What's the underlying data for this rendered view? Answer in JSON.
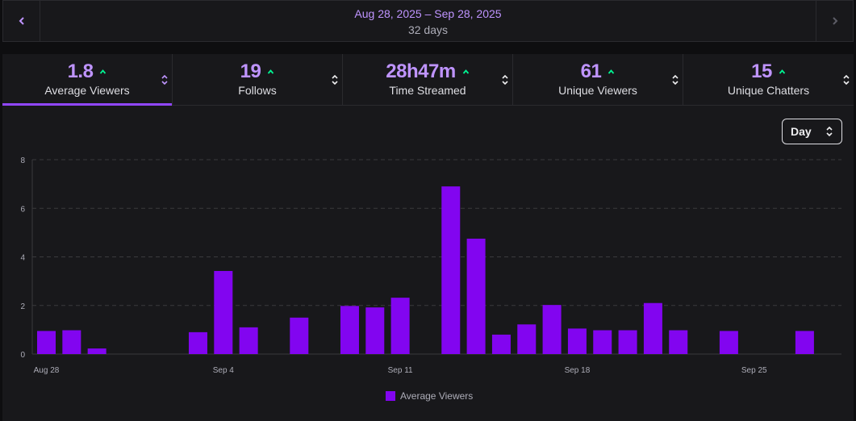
{
  "header": {
    "date_range": "Aug 28, 2025 – Sep 28, 2025",
    "day_count": "32 days",
    "prev_icon": "chevron-left-icon",
    "next_icon": "chevron-right-icon"
  },
  "tabs": [
    {
      "value": "1.8",
      "label": "Average Viewers",
      "trend": "up",
      "active": true
    },
    {
      "value": "19",
      "label": "Follows",
      "trend": "up",
      "active": false
    },
    {
      "value": "28h47m",
      "label": "Time Streamed",
      "trend": "up",
      "active": false
    },
    {
      "value": "61",
      "label": "Unique Viewers",
      "trend": "up",
      "active": false
    },
    {
      "value": "15",
      "label": "Unique Chatters",
      "trend": "up",
      "active": false
    }
  ],
  "granularity_select": {
    "value": "Day"
  },
  "colors": {
    "accent": "#bf94ff",
    "bar": "#8205f0",
    "trend_up": "#00f593",
    "active_underline": "#9147ff"
  },
  "chart_data": {
    "type": "bar",
    "categories": [
      "Aug 28",
      "Aug 29",
      "Aug 30",
      "Aug 31",
      "Sep 1",
      "Sep 2",
      "Sep 3",
      "Sep 4",
      "Sep 5",
      "Sep 6",
      "Sep 7",
      "Sep 8",
      "Sep 9",
      "Sep 10",
      "Sep 11",
      "Sep 12",
      "Sep 13",
      "Sep 14",
      "Sep 15",
      "Sep 16",
      "Sep 17",
      "Sep 18",
      "Sep 19",
      "Sep 20",
      "Sep 21",
      "Sep 22",
      "Sep 23",
      "Sep 24",
      "Sep 25",
      "Sep 26",
      "Sep 27",
      "Sep 28"
    ],
    "series": [
      {
        "name": "Average Viewers",
        "values": [
          0.95,
          0.98,
          0.23,
          0,
          0,
          0,
          0.9,
          3.42,
          1.1,
          0,
          1.5,
          0,
          1.98,
          1.92,
          2.32,
          0,
          6.9,
          4.75,
          0.8,
          1.22,
          2.02,
          1.05,
          0.98,
          0.98,
          2.1,
          0.98,
          0,
          0.95,
          0,
          0,
          0.95,
          0
        ]
      }
    ],
    "tick_labels_x": [
      "Aug 28",
      "Sep 4",
      "Sep 11",
      "Sep 18",
      "Sep 25"
    ],
    "tick_labels_y": [
      "0",
      "2",
      "4",
      "6",
      "8"
    ],
    "ylim": [
      0,
      8
    ],
    "grid": true,
    "legend_placement": "bottom-center"
  }
}
